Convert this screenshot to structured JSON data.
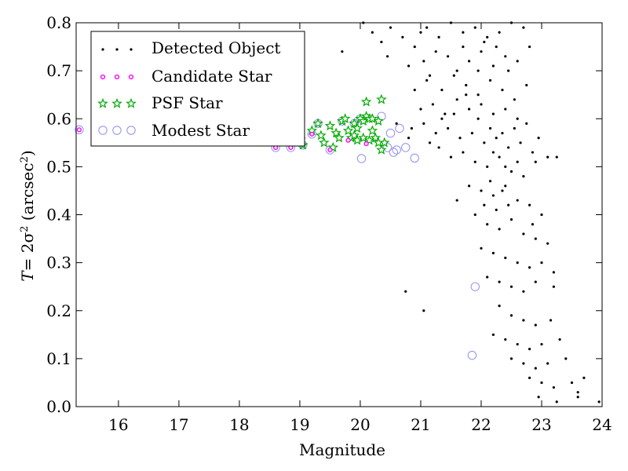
{
  "chart_data": {
    "type": "scatter",
    "title": "",
    "xlabel": "Magnitude",
    "ylabel": {
      "prefix": "T",
      "mid": "= 2σ",
      "sup1": "2",
      "unit": " (arcsec",
      "sup2": "2",
      "close": ")"
    },
    "xlim": [
      15.3,
      24.0
    ],
    "ylim": [
      0.0,
      0.8
    ],
    "xticks": [
      16,
      17,
      18,
      19,
      20,
      21,
      22,
      23,
      24
    ],
    "yticks": [
      0.0,
      0.1,
      0.2,
      0.3,
      0.4,
      0.5,
      0.6,
      0.7,
      0.8
    ],
    "xtick_labels": [
      "16",
      "17",
      "18",
      "19",
      "20",
      "21",
      "22",
      "23",
      "24"
    ],
    "ytick_labels": [
      "0.0",
      "0.1",
      "0.2",
      "0.3",
      "0.4",
      "0.5",
      "0.6",
      "0.7",
      "0.8"
    ],
    "grid": false,
    "legend_position": "top-left",
    "series": [
      {
        "name": "Detected Object",
        "marker": "dot",
        "color": "#000000",
        "points": [
          [
            20.05,
            0.8
          ],
          [
            20.2,
            0.78
          ],
          [
            20.35,
            0.76
          ],
          [
            20.5,
            0.79
          ],
          [
            20.7,
            0.77
          ],
          [
            20.9,
            0.75
          ],
          [
            21.0,
            0.78
          ],
          [
            21.1,
            0.79
          ],
          [
            21.3,
            0.77
          ],
          [
            21.5,
            0.8
          ],
          [
            21.7,
            0.78
          ],
          [
            21.9,
            0.79
          ],
          [
            22.1,
            0.77
          ],
          [
            22.3,
            0.78
          ],
          [
            22.5,
            0.8
          ],
          [
            22.7,
            0.79
          ],
          [
            20.45,
            0.73
          ],
          [
            20.8,
            0.71
          ],
          [
            21.05,
            0.72
          ],
          [
            21.25,
            0.74
          ],
          [
            21.45,
            0.73
          ],
          [
            21.6,
            0.7
          ],
          [
            21.8,
            0.72
          ],
          [
            22.0,
            0.74
          ],
          [
            22.2,
            0.71
          ],
          [
            22.4,
            0.73
          ],
          [
            22.6,
            0.72
          ],
          [
            22.8,
            0.75
          ],
          [
            19.7,
            0.74
          ],
          [
            20.9,
            0.66
          ],
          [
            21.1,
            0.68
          ],
          [
            21.35,
            0.66
          ],
          [
            21.55,
            0.69
          ],
          [
            21.75,
            0.67
          ],
          [
            21.95,
            0.65
          ],
          [
            22.15,
            0.68
          ],
          [
            22.35,
            0.66
          ],
          [
            22.55,
            0.64
          ],
          [
            22.75,
            0.67
          ],
          [
            21.0,
            0.62
          ],
          [
            21.2,
            0.63
          ],
          [
            21.4,
            0.61
          ],
          [
            21.6,
            0.64
          ],
          [
            21.8,
            0.62
          ],
          [
            22.0,
            0.63
          ],
          [
            22.2,
            0.61
          ],
          [
            22.4,
            0.62
          ],
          [
            22.6,
            0.6
          ],
          [
            20.85,
            0.58
          ],
          [
            21.05,
            0.59
          ],
          [
            21.25,
            0.57
          ],
          [
            21.45,
            0.58
          ],
          [
            21.65,
            0.56
          ],
          [
            21.85,
            0.57
          ],
          [
            22.05,
            0.55
          ],
          [
            22.25,
            0.56
          ],
          [
            22.45,
            0.54
          ],
          [
            22.65,
            0.55
          ],
          [
            22.85,
            0.53
          ],
          [
            21.3,
            0.54
          ],
          [
            21.5,
            0.52
          ],
          [
            21.7,
            0.53
          ],
          [
            21.9,
            0.51
          ],
          [
            22.1,
            0.5
          ],
          [
            22.3,
            0.52
          ],
          [
            22.5,
            0.49
          ],
          [
            22.7,
            0.48
          ],
          [
            22.9,
            0.51
          ],
          [
            23.1,
            0.52
          ],
          [
            23.25,
            0.52
          ],
          [
            21.8,
            0.46
          ],
          [
            22.0,
            0.45
          ],
          [
            22.2,
            0.44
          ],
          [
            22.4,
            0.46
          ],
          [
            22.6,
            0.43
          ],
          [
            22.8,
            0.42
          ],
          [
            21.9,
            0.4
          ],
          [
            22.1,
            0.38
          ],
          [
            22.3,
            0.37
          ],
          [
            22.5,
            0.39
          ],
          [
            22.7,
            0.36
          ],
          [
            22.9,
            0.35
          ],
          [
            22.0,
            0.33
          ],
          [
            22.2,
            0.32
          ],
          [
            22.4,
            0.31
          ],
          [
            22.6,
            0.3
          ],
          [
            22.8,
            0.29
          ],
          [
            23.0,
            0.3
          ],
          [
            22.1,
            0.27
          ],
          [
            22.3,
            0.26
          ],
          [
            22.5,
            0.25
          ],
          [
            22.7,
            0.24
          ],
          [
            22.9,
            0.26
          ],
          [
            23.2,
            0.25
          ],
          [
            20.75,
            0.24
          ],
          [
            21.05,
            0.2
          ],
          [
            22.3,
            0.21
          ],
          [
            22.5,
            0.19
          ],
          [
            22.7,
            0.18
          ],
          [
            22.9,
            0.17
          ],
          [
            23.15,
            0.18
          ],
          [
            22.2,
            0.15
          ],
          [
            22.4,
            0.14
          ],
          [
            22.6,
            0.13
          ],
          [
            22.8,
            0.12
          ],
          [
            23.0,
            0.13
          ],
          [
            23.3,
            0.14
          ],
          [
            22.5,
            0.1
          ],
          [
            22.7,
            0.09
          ],
          [
            22.9,
            0.08
          ],
          [
            23.1,
            0.09
          ],
          [
            23.4,
            0.1
          ],
          [
            22.8,
            0.06
          ],
          [
            23.0,
            0.05
          ],
          [
            23.2,
            0.04
          ],
          [
            23.5,
            0.05
          ],
          [
            23.6,
            0.03
          ],
          [
            22.95,
            0.02
          ],
          [
            23.25,
            0.01
          ],
          [
            23.6,
            0.02
          ],
          [
            23.95,
            0.01
          ],
          [
            23.7,
            0.06
          ],
          [
            21.6,
            0.43
          ],
          [
            22.15,
            0.47
          ],
          [
            22.35,
            0.45
          ],
          [
            21.15,
            0.69
          ],
          [
            21.95,
            0.7
          ],
          [
            22.45,
            0.7
          ],
          [
            21.7,
            0.75
          ],
          [
            22.05,
            0.76
          ],
          [
            22.25,
            0.75
          ],
          [
            20.6,
            0.59
          ],
          [
            20.8,
            0.56
          ],
          [
            21.15,
            0.55
          ],
          [
            21.35,
            0.6
          ],
          [
            21.55,
            0.61
          ],
          [
            21.75,
            0.65
          ],
          [
            21.95,
            0.6
          ],
          [
            22.15,
            0.58
          ],
          [
            22.35,
            0.57
          ],
          [
            22.55,
            0.58
          ],
          [
            22.75,
            0.59
          ],
          [
            22.95,
            0.56
          ],
          [
            22.2,
            0.53
          ],
          [
            22.4,
            0.5
          ],
          [
            22.6,
            0.51
          ],
          [
            22.05,
            0.42
          ],
          [
            22.25,
            0.41
          ],
          [
            22.45,
            0.42
          ],
          [
            22.85,
            0.38
          ],
          [
            23.0,
            0.4
          ],
          [
            23.1,
            0.34
          ],
          [
            23.2,
            0.28
          ]
        ]
      },
      {
        "name": "Candidate Star",
        "marker": "small-circle",
        "color": "#ff00ff",
        "points": [
          [
            15.35,
            0.577
          ],
          [
            18.6,
            0.54
          ],
          [
            18.85,
            0.54
          ],
          [
            19.2,
            0.568
          ],
          [
            19.5,
            0.535
          ],
          [
            19.05,
            0.56
          ],
          [
            19.8,
            0.555
          ],
          [
            20.1,
            0.548
          ]
        ]
      },
      {
        "name": "PSF Star",
        "marker": "star",
        "color": "#00aa00",
        "points": [
          [
            19.05,
            0.545
          ],
          [
            19.2,
            0.575
          ],
          [
            19.3,
            0.59
          ],
          [
            19.35,
            0.565
          ],
          [
            19.4,
            0.55
          ],
          [
            19.5,
            0.585
          ],
          [
            19.55,
            0.54
          ],
          [
            19.6,
            0.57
          ],
          [
            19.65,
            0.56
          ],
          [
            19.7,
            0.595
          ],
          [
            19.75,
            0.6
          ],
          [
            19.8,
            0.575
          ],
          [
            19.85,
            0.56
          ],
          [
            19.9,
            0.59
          ],
          [
            19.95,
            0.58
          ],
          [
            20.0,
            0.6
          ],
          [
            20.05,
            0.595
          ],
          [
            20.1,
            0.605
          ],
          [
            20.15,
            0.6
          ],
          [
            20.2,
            0.575
          ],
          [
            20.25,
            0.56
          ],
          [
            20.3,
            0.595
          ],
          [
            20.35,
            0.64
          ],
          [
            20.4,
            0.55
          ],
          [
            20.1,
            0.635
          ],
          [
            20.2,
            0.6
          ],
          [
            20.3,
            0.55
          ],
          [
            19.9,
            0.565
          ],
          [
            19.95,
            0.555
          ],
          [
            20.05,
            0.56
          ],
          [
            20.15,
            0.555
          ],
          [
            20.35,
            0.535
          ]
        ]
      },
      {
        "name": "Modest Star",
        "marker": "open-circle",
        "color": "#9999ee",
        "points": [
          [
            15.35,
            0.577
          ],
          [
            18.6,
            0.54
          ],
          [
            18.85,
            0.54
          ],
          [
            19.2,
            0.568
          ],
          [
            19.5,
            0.535
          ],
          [
            19.05,
            0.545
          ],
          [
            19.3,
            0.59
          ],
          [
            19.7,
            0.595
          ],
          [
            19.9,
            0.59
          ],
          [
            20.0,
            0.6
          ],
          [
            20.02,
            0.517
          ],
          [
            20.35,
            0.605
          ],
          [
            20.5,
            0.57
          ],
          [
            20.45,
            0.54
          ],
          [
            20.55,
            0.53
          ],
          [
            20.6,
            0.535
          ],
          [
            20.65,
            0.58
          ],
          [
            20.75,
            0.54
          ],
          [
            20.9,
            0.518
          ],
          [
            21.85,
            0.107
          ],
          [
            21.9,
            0.25
          ]
        ]
      }
    ]
  }
}
